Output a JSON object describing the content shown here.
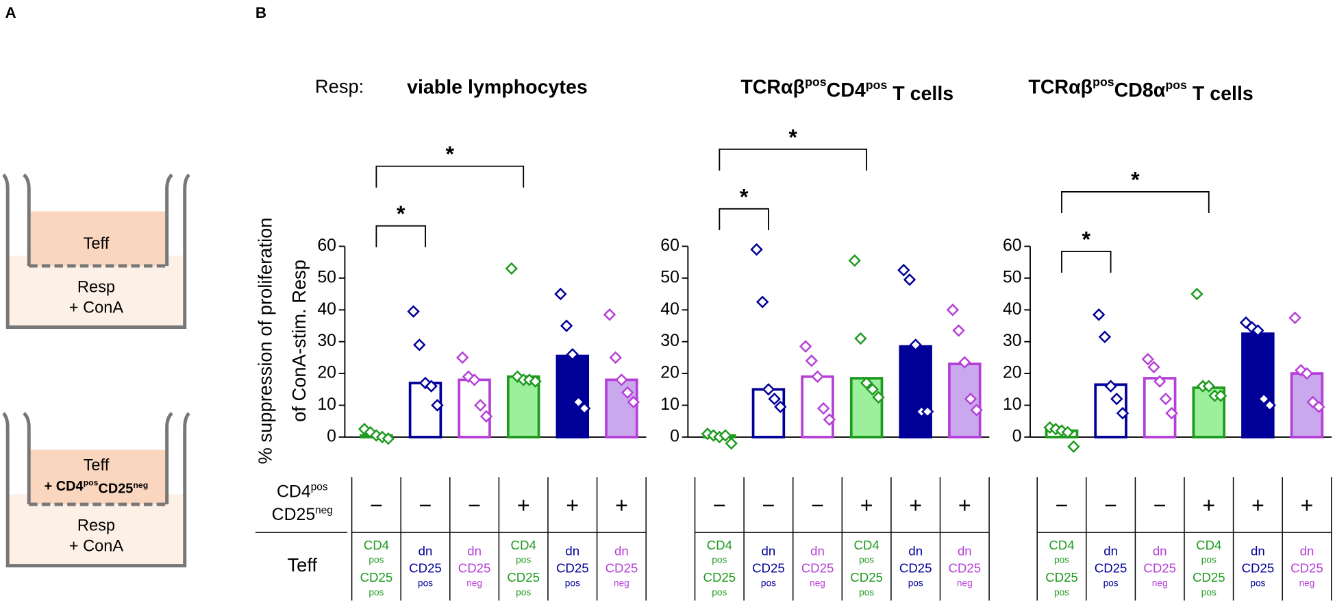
{
  "panel_labels": [
    "A",
    "B"
  ],
  "panel_a": {
    "well_1": {
      "upper": "Teff",
      "lower": [
        "Resp",
        "+ ConA"
      ]
    },
    "well_2": {
      "upper": "Teff",
      "added": [
        {
          "text": "+ CD4"
        },
        {
          "sup": "pos"
        },
        {
          "text": "CD25"
        },
        {
          "sup": "neg"
        }
      ],
      "lower": [
        "Resp",
        "+ ConA"
      ]
    }
  },
  "resp_label": "Resp:",
  "table_labels": {
    "row_1": [
      [
        {
          "text": "CD4"
        },
        {
          "sup": "pos"
        }
      ],
      [
        {
          "text": "CD25"
        },
        {
          "sup": "neg"
        }
      ]
    ],
    "row_2": "Teff"
  },
  "chart_data": [
    {
      "type": "bar",
      "title": [
        {
          "text": "viable lymphocytes"
        }
      ],
      "ylabel": [
        "% suppression of proliferation",
        "of ConA-stim. Resp"
      ],
      "values": [
        0.5,
        17,
        18,
        19,
        25.5,
        18
      ],
      "points": [
        [
          2.5,
          1.5,
          0.5,
          0,
          -0.5
        ],
        [
          39.5,
          29,
          17,
          16,
          10
        ],
        [
          25,
          19,
          18,
          10,
          6.5
        ],
        [
          53,
          19,
          18,
          18,
          17.5
        ],
        [
          45,
          35,
          26,
          11,
          9
        ],
        [
          38.5,
          25,
          18,
          14,
          11
        ]
      ],
      "stroke_colors": [
        "#1e9a1e",
        "#000099",
        "#b540d8",
        "#1e9a1e",
        "#000099",
        "#b540d8"
      ],
      "fill_colors": [
        "#ffffff",
        "#ffffff",
        "#ffffff",
        "#9cf09c",
        "#000099",
        "#c9a8ee"
      ],
      "ylim": [
        0,
        60
      ],
      "yticks": [
        0,
        10,
        20,
        30,
        40,
        50,
        60
      ],
      "annotations": [
        "*",
        "*"
      ],
      "table": {
        "signs": [
          "−",
          "−",
          "−",
          "+",
          "+",
          "+"
        ],
        "cells": [
          [
            "CD4",
            "pos",
            "CD25",
            "pos"
          ],
          [
            "dn",
            "CD25",
            "pos"
          ],
          [
            "dn",
            "CD25",
            "neg"
          ],
          [
            "CD4",
            "pos",
            "CD25",
            "pos"
          ],
          [
            "dn",
            "CD25",
            "pos"
          ],
          [
            "dn",
            "CD25",
            "neg"
          ]
        ]
      }
    },
    {
      "type": "bar",
      "title": [
        {
          "text": "TCRαβ"
        },
        {
          "sup": "pos"
        },
        {
          "text": "CD4"
        },
        {
          "sup": "pos"
        },
        {
          "text": " T cells"
        }
      ],
      "values": [
        0.5,
        15,
        19,
        18.5,
        28.5,
        23
      ],
      "points": [
        [
          1,
          0.5,
          0,
          0.5,
          -2
        ],
        [
          59,
          42.5,
          15,
          12,
          9.5
        ],
        [
          28.5,
          24,
          19,
          9,
          5.5
        ],
        [
          55.5,
          31,
          17,
          15,
          12.5
        ],
        [
          52.5,
          49.5,
          29,
          8,
          8
        ],
        [
          40,
          33.5,
          23.5,
          12,
          8.5
        ]
      ],
      "stroke_colors": [
        "#1e9a1e",
        "#000099",
        "#b540d8",
        "#1e9a1e",
        "#000099",
        "#b540d8"
      ],
      "fill_colors": [
        "#ffffff",
        "#ffffff",
        "#ffffff",
        "#9cf09c",
        "#000099",
        "#c9a8ee"
      ],
      "ylim": [
        0,
        60
      ],
      "yticks": [
        0,
        10,
        20,
        30,
        40,
        50,
        60
      ],
      "annotations": [
        "*",
        "*"
      ],
      "table": {
        "signs": [
          "−",
          "−",
          "−",
          "+",
          "+",
          "+"
        ],
        "cells": [
          [
            "CD4",
            "pos",
            "CD25",
            "pos"
          ],
          [
            "dn",
            "CD25",
            "pos"
          ],
          [
            "dn",
            "CD25",
            "neg"
          ],
          [
            "CD4",
            "pos",
            "CD25",
            "pos"
          ],
          [
            "dn",
            "CD25",
            "pos"
          ],
          [
            "dn",
            "CD25",
            "neg"
          ]
        ]
      }
    },
    {
      "type": "bar",
      "title": [
        {
          "text": "TCRαβ"
        },
        {
          "sup": "pos"
        },
        {
          "text": "CD8α"
        },
        {
          "sup": "pos"
        },
        {
          "text": " T cells"
        }
      ],
      "values": [
        2,
        16.5,
        18.5,
        15.5,
        32.5,
        20
      ],
      "points": [
        [
          3,
          2.5,
          2,
          1.5,
          -3
        ],
        [
          38.5,
          31.5,
          16,
          12,
          7.5
        ],
        [
          24.5,
          22,
          17.5,
          12,
          7.5
        ],
        [
          45,
          16,
          16,
          13,
          13
        ],
        [
          36,
          34.5,
          33.5,
          12,
          10
        ],
        [
          37.5,
          21,
          20,
          11,
          9.5
        ]
      ],
      "stroke_colors": [
        "#1e9a1e",
        "#000099",
        "#b540d8",
        "#1e9a1e",
        "#000099",
        "#b540d8"
      ],
      "fill_colors": [
        "#ffffff",
        "#ffffff",
        "#ffffff",
        "#9cf09c",
        "#000099",
        "#c9a8ee"
      ],
      "ylim": [
        0,
        60
      ],
      "yticks": [
        0,
        10,
        20,
        30,
        40,
        50,
        60
      ],
      "annotations": [
        "*",
        "*"
      ],
      "table": {
        "signs": [
          "−",
          "−",
          "−",
          "+",
          "+",
          "+"
        ],
        "cells": [
          [
            "CD4",
            "pos",
            "CD25",
            "pos"
          ],
          [
            "dn",
            "CD25",
            "pos"
          ],
          [
            "dn",
            "CD25",
            "neg"
          ],
          [
            "CD4",
            "pos",
            "CD25",
            "pos"
          ],
          [
            "dn",
            "CD25",
            "pos"
          ],
          [
            "dn",
            "CD25",
            "neg"
          ]
        ]
      }
    }
  ]
}
